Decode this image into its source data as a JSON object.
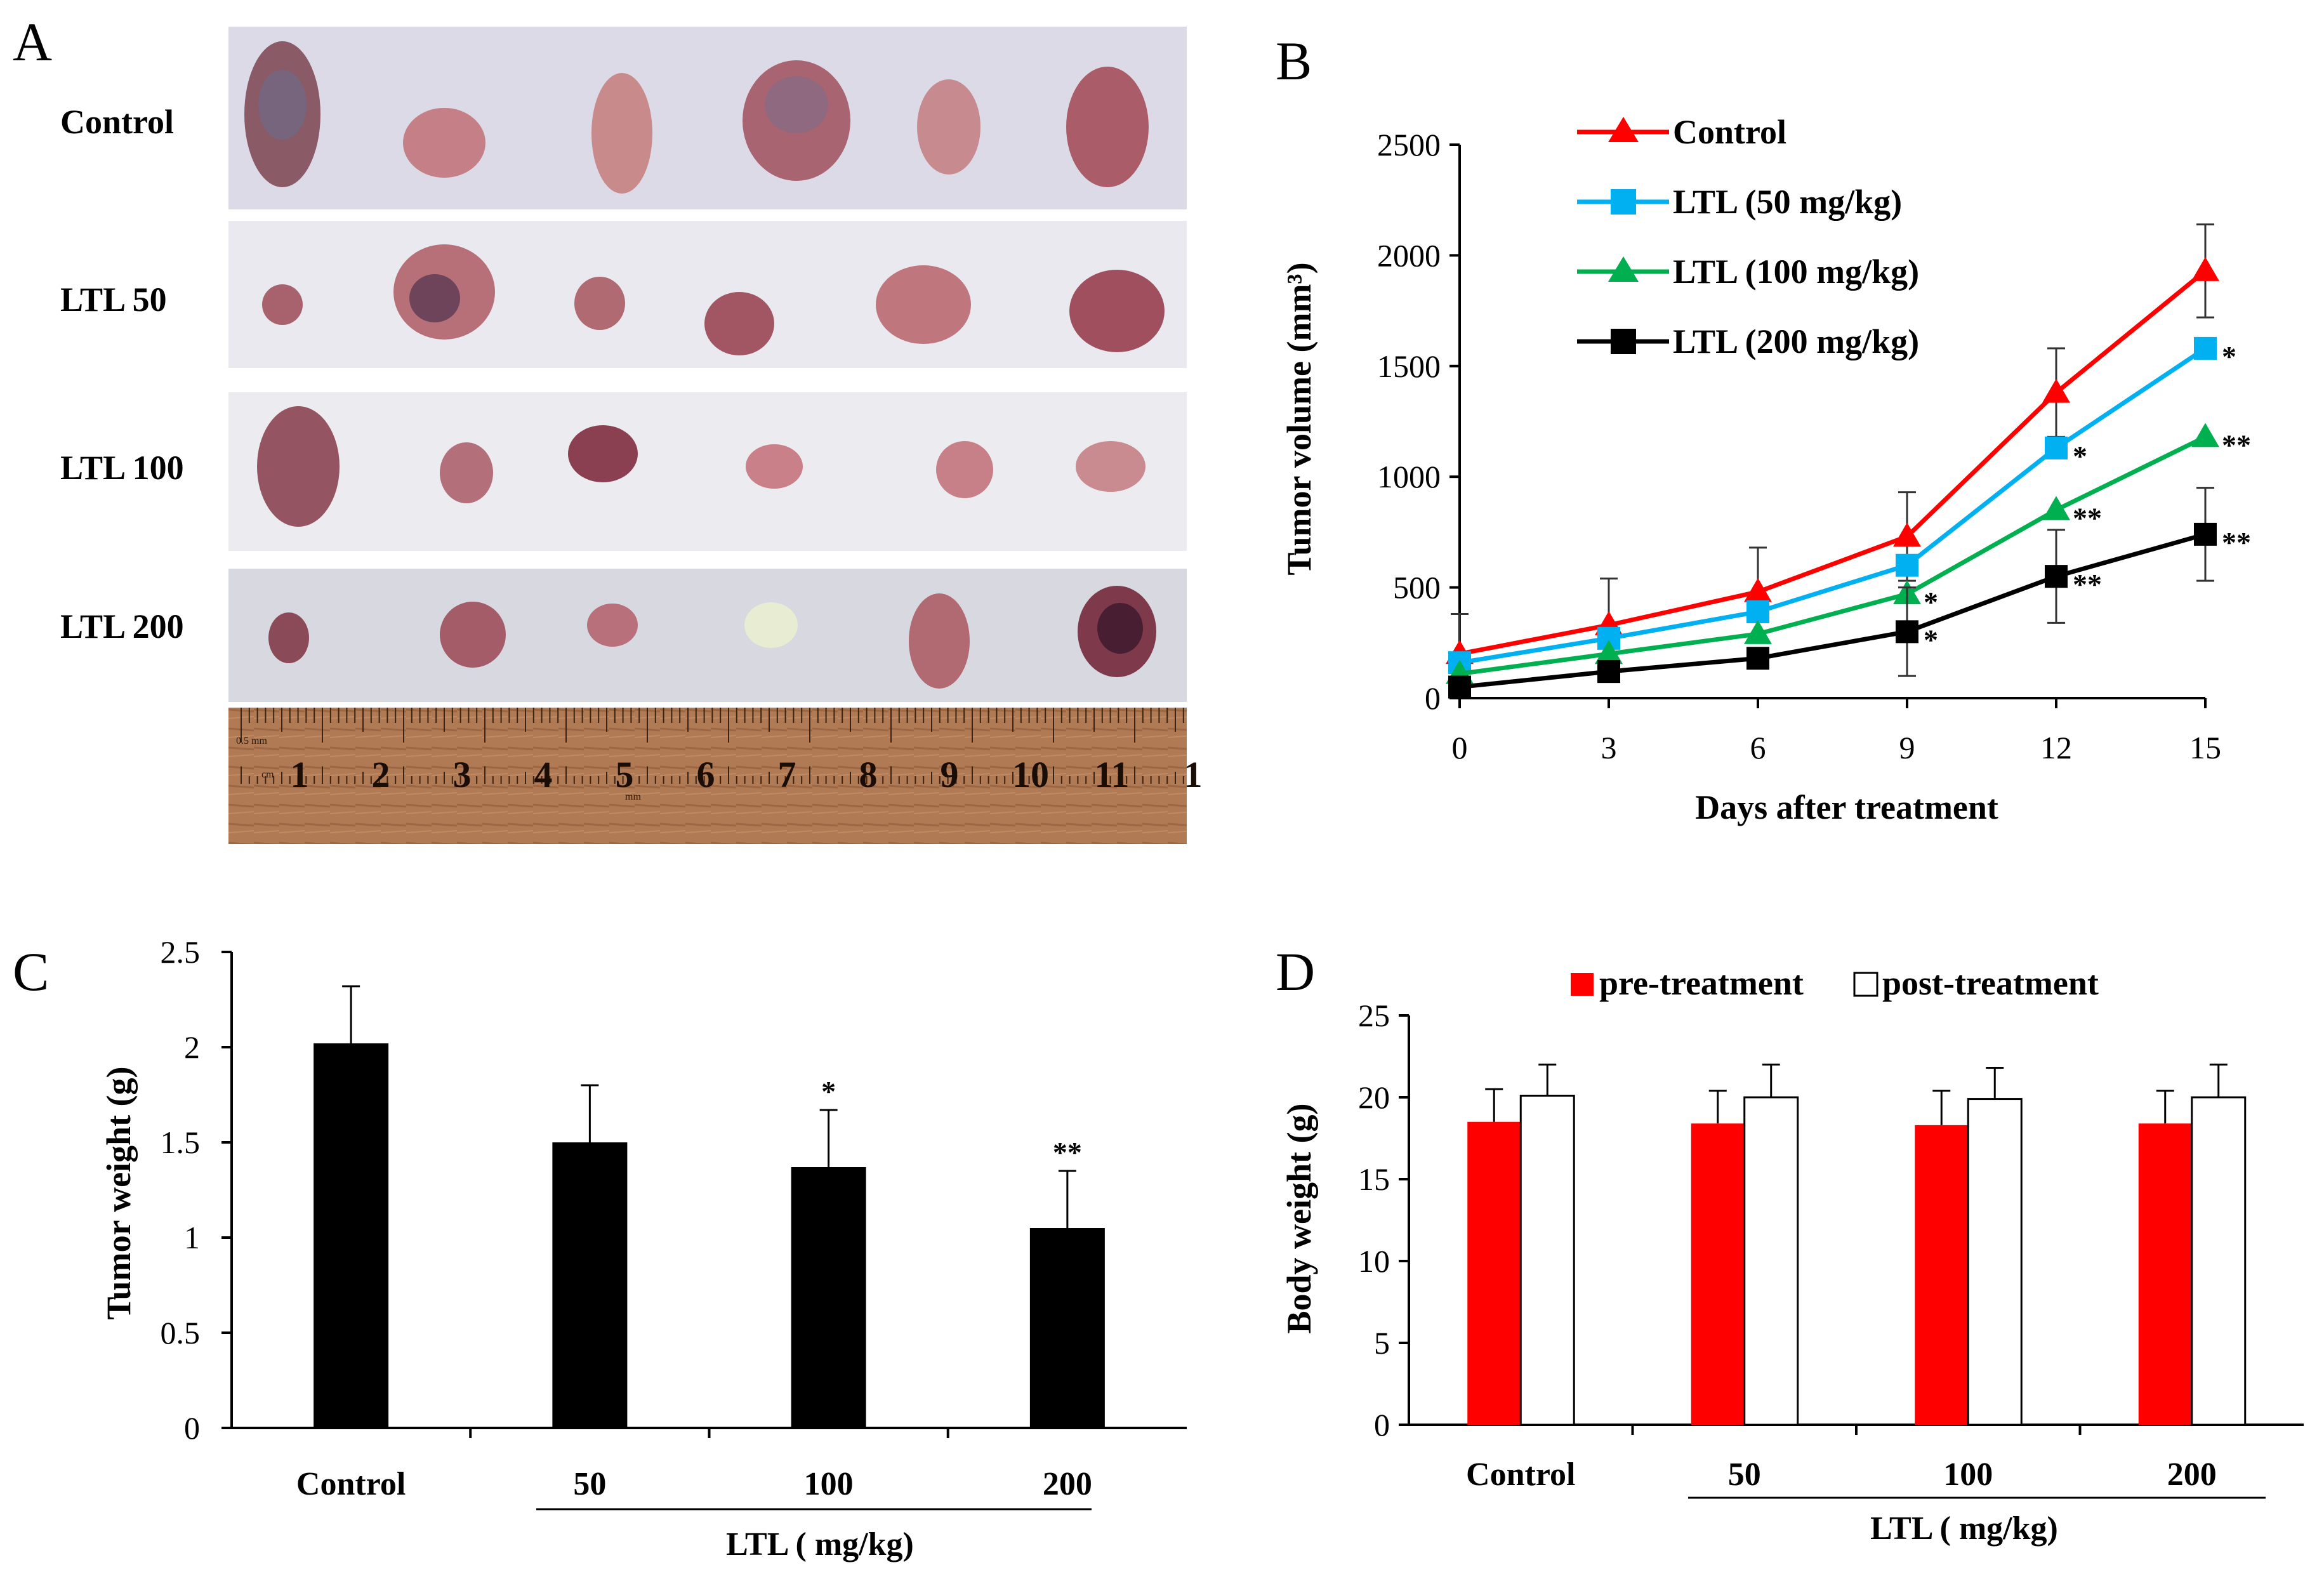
{
  "panels": {
    "a": "A",
    "b": "B",
    "c": "C",
    "d": "D"
  },
  "panel_a": {
    "rows": [
      {
        "label": "Control",
        "tumors": 6
      },
      {
        "label": "LTL 50",
        "tumors": 6
      },
      {
        "label": "LTL 100",
        "tumors": 6
      },
      {
        "label": "LTL 200",
        "tumors": 6
      }
    ],
    "ruler": {
      "numbers": [
        "1",
        "2",
        "3",
        "4",
        "5",
        "6",
        "7",
        "8",
        "9",
        "10",
        "11",
        "1"
      ],
      "small_labels": [
        "0.5 mm",
        "cm",
        "mm"
      ]
    }
  },
  "colors": {
    "control": "#ff0000",
    "ltl50": "#00b0f0",
    "ltl100": "#00b050",
    "ltl200": "#000000",
    "bar": "#000000",
    "pre": "#ff0000",
    "post": "#ffffff"
  },
  "chart_data": [
    {
      "id": "B",
      "type": "line",
      "xlabel": "Days after treatment",
      "ylabel": "Tumor volume (mm³)",
      "x": [
        0,
        3,
        6,
        9,
        12,
        15
      ],
      "xlim": [
        0,
        15
      ],
      "ylim": [
        0,
        2500
      ],
      "yticks": [
        0,
        500,
        1000,
        1500,
        2000,
        2500
      ],
      "series": [
        {
          "name": "Control",
          "marker": "triangle",
          "values": [
            200,
            330,
            480,
            730,
            1380,
            1930
          ],
          "errors": [
            180,
            210,
            200,
            200,
            200,
            210
          ],
          "stars": [
            "",
            "",
            "",
            "",
            "",
            ""
          ]
        },
        {
          "name": "LTL (50 mg/kg)",
          "marker": "square",
          "values": [
            160,
            270,
            390,
            600,
            1130,
            1580
          ],
          "errors": [
            0,
            0,
            0,
            0,
            0,
            0
          ],
          "stars": [
            "",
            "",
            "",
            "",
            "*",
            "*"
          ]
        },
        {
          "name": "LTL (100 mg/kg)",
          "marker": "triangle",
          "values": [
            110,
            200,
            290,
            470,
            850,
            1180
          ],
          "errors": [
            0,
            0,
            0,
            0,
            0,
            0
          ],
          "stars": [
            "",
            "",
            "",
            "*",
            "**",
            "**"
          ]
        },
        {
          "name": "LTL (200 mg/kg)",
          "marker": "square",
          "values": [
            50,
            120,
            180,
            300,
            550,
            740
          ],
          "errors": [
            0,
            0,
            0,
            200,
            210,
            210
          ],
          "stars": [
            "",
            "",
            "",
            "*",
            "**",
            "**"
          ]
        }
      ]
    },
    {
      "id": "C",
      "type": "bar",
      "ylabel": "Tumor weight (g)",
      "categories": [
        "Control",
        "50",
        "100",
        "200"
      ],
      "group_label": "LTL ( mg/kg)",
      "values": [
        2.02,
        1.5,
        1.37,
        1.05
      ],
      "errors": [
        0.3,
        0.3,
        0.3,
        0.3
      ],
      "stars": [
        "",
        "",
        "*",
        "**"
      ],
      "ylim": [
        0,
        2.5
      ],
      "yticks": [
        "0",
        "0.5",
        "1",
        "1.5",
        "2",
        "2.5"
      ]
    },
    {
      "id": "D",
      "type": "bar",
      "ylabel": "Body weight (g)",
      "categories": [
        "Control",
        "50",
        "100",
        "200"
      ],
      "group_label": "LTL ( mg/kg)",
      "series": [
        {
          "name": "pre-treatment",
          "values": [
            18.5,
            18.4,
            18.3,
            18.4
          ],
          "errors": [
            2.0,
            2.0,
            2.1,
            2.0
          ]
        },
        {
          "name": "post-treatment",
          "values": [
            20.1,
            20.0,
            19.9,
            20.0
          ],
          "errors": [
            1.9,
            2.0,
            1.9,
            2.0
          ]
        }
      ],
      "ylim": [
        0,
        25
      ],
      "yticks": [
        "0",
        "5",
        "10",
        "15",
        "20",
        "25"
      ]
    }
  ]
}
